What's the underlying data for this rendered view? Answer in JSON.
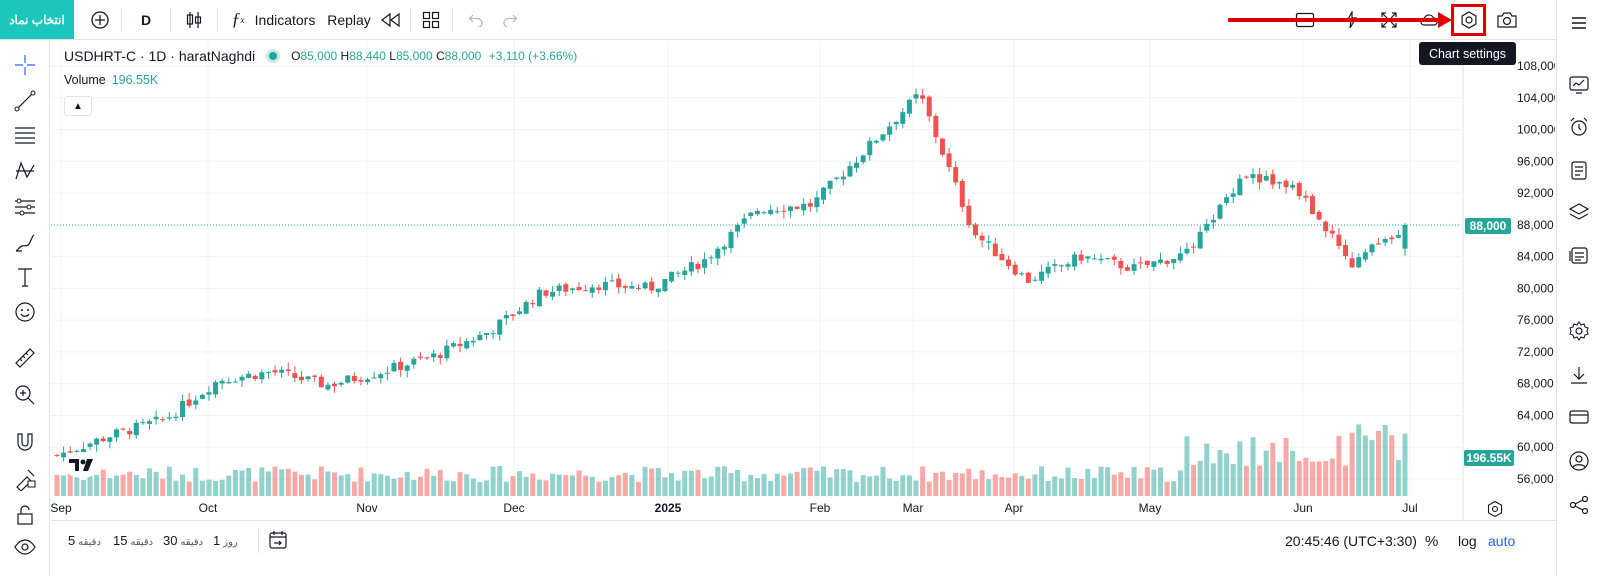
{
  "topbar": {
    "symbol_button": "انتخاب نماد",
    "interval": "D",
    "indicators_label": "Indicators",
    "replay_label": "Replay",
    "tooltip": "Chart settings"
  },
  "legend": {
    "symbol": "USDHRT-C · 1D · haratNaghdi",
    "o_label": "O",
    "o_value": "85,000",
    "h_label": "H",
    "h_value": "88,440",
    "l_label": "L",
    "l_value": "85,000",
    "c_label": "C",
    "c_value": "88,000",
    "change": "+3,110 (+3.66%)",
    "volume_label": "Volume",
    "volume_value": "196.55K"
  },
  "price_axis": {
    "labels": [
      "108,000",
      "104,000",
      "100,000",
      "96,000",
      "92,000",
      "88,000",
      "84,000",
      "80,000",
      "76,000",
      "72,000",
      "68,000",
      "64,000",
      "60,000",
      "56,000"
    ],
    "current_price": "88,000",
    "current_volume": "196.55K"
  },
  "time_axis": {
    "labels": [
      "Sep",
      "Oct",
      "Nov",
      "Dec",
      "2025",
      "Feb",
      "Mar",
      "Apr",
      "May",
      "Jun",
      "Jul"
    ]
  },
  "bottom": {
    "timeframes": [
      {
        "num": "5",
        "unit": "دقیقه"
      },
      {
        "num": "15",
        "unit": "دقیقه"
      },
      {
        "num": "30",
        "unit": "دقیقه"
      },
      {
        "num": "1",
        "unit": "روز"
      }
    ],
    "clock": "20:45:46 (UTC+3:30)",
    "percent": "%",
    "log": "log",
    "auto": "auto"
  },
  "colors": {
    "up": "#26a69a",
    "down": "#ef5350",
    "accent": "#1bc6bd",
    "annotation": "#e00000"
  },
  "chart_data": {
    "type": "candlestick",
    "title": "USDHRT-C · 1D · haratNaghdi",
    "ylim": [
      54000,
      110000
    ],
    "x_labels": [
      "Sep",
      "Oct",
      "Nov",
      "Dec",
      "2025",
      "Feb",
      "Mar",
      "Apr",
      "May",
      "Jun",
      "Jul"
    ],
    "close_path": [
      [
        "Sep",
        59000
      ],
      [
        "Oct",
        61500
      ],
      [
        "Oct-late",
        63500
      ],
      [
        "Nov",
        68500
      ],
      [
        "Nov-mid",
        69500
      ],
      [
        "Nov-late",
        67800
      ],
      [
        "Dec",
        69500
      ],
      [
        "Dec-mid",
        71500
      ],
      [
        "Dec-late",
        74500
      ],
      [
        "2025",
        79500
      ],
      [
        "Jan-mid",
        80500
      ],
      [
        "Jan-late",
        80000
      ],
      [
        "Feb",
        83500
      ],
      [
        "Feb-mid",
        90000
      ],
      [
        "Mar",
        90500
      ],
      [
        "Mar-mid",
        97500
      ],
      [
        "Apr",
        104500
      ],
      [
        "Apr-mid",
        87000
      ],
      [
        "Apr-late",
        81000
      ],
      [
        "May",
        84000
      ],
      [
        "May-mid",
        82500
      ],
      [
        "Jun",
        84500
      ],
      [
        "Jun-early",
        94500
      ],
      [
        "Jun-mid",
        92500
      ],
      [
        "Jun-late",
        83000
      ],
      [
        "Jun-end",
        88000
      ]
    ],
    "last": {
      "open": 85000,
      "high": 88440,
      "low": 85000,
      "close": 88000
    },
    "volume_last": "196.55K"
  }
}
